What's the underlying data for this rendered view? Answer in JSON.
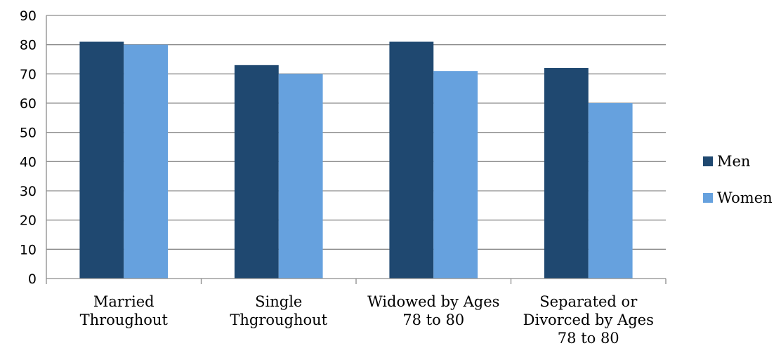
{
  "chart_data": {
    "type": "bar",
    "categories": [
      [
        "Married",
        "Throughout"
      ],
      [
        "Single",
        "Thgroughout"
      ],
      [
        "Widowed by Ages",
        "78 to 80"
      ],
      [
        "Separated or",
        "Divorced by Ages",
        "78 to 80"
      ]
    ],
    "series": [
      {
        "name": "Men",
        "color": "#1f4870",
        "values": [
          81,
          73,
          81,
          72
        ]
      },
      {
        "name": "Women",
        "color": "#66a1de",
        "values": [
          80,
          70,
          71,
          60
        ]
      }
    ],
    "ylim": [
      0,
      90
    ],
    "yticks": [
      "0",
      "10",
      "20",
      "30",
      "40",
      "50",
      "60",
      "70",
      "80",
      "90"
    ],
    "grid": true,
    "gridColor": "#8c8c8c",
    "legend": "right",
    "title": "",
    "xlabel": "",
    "ylabel": ""
  }
}
